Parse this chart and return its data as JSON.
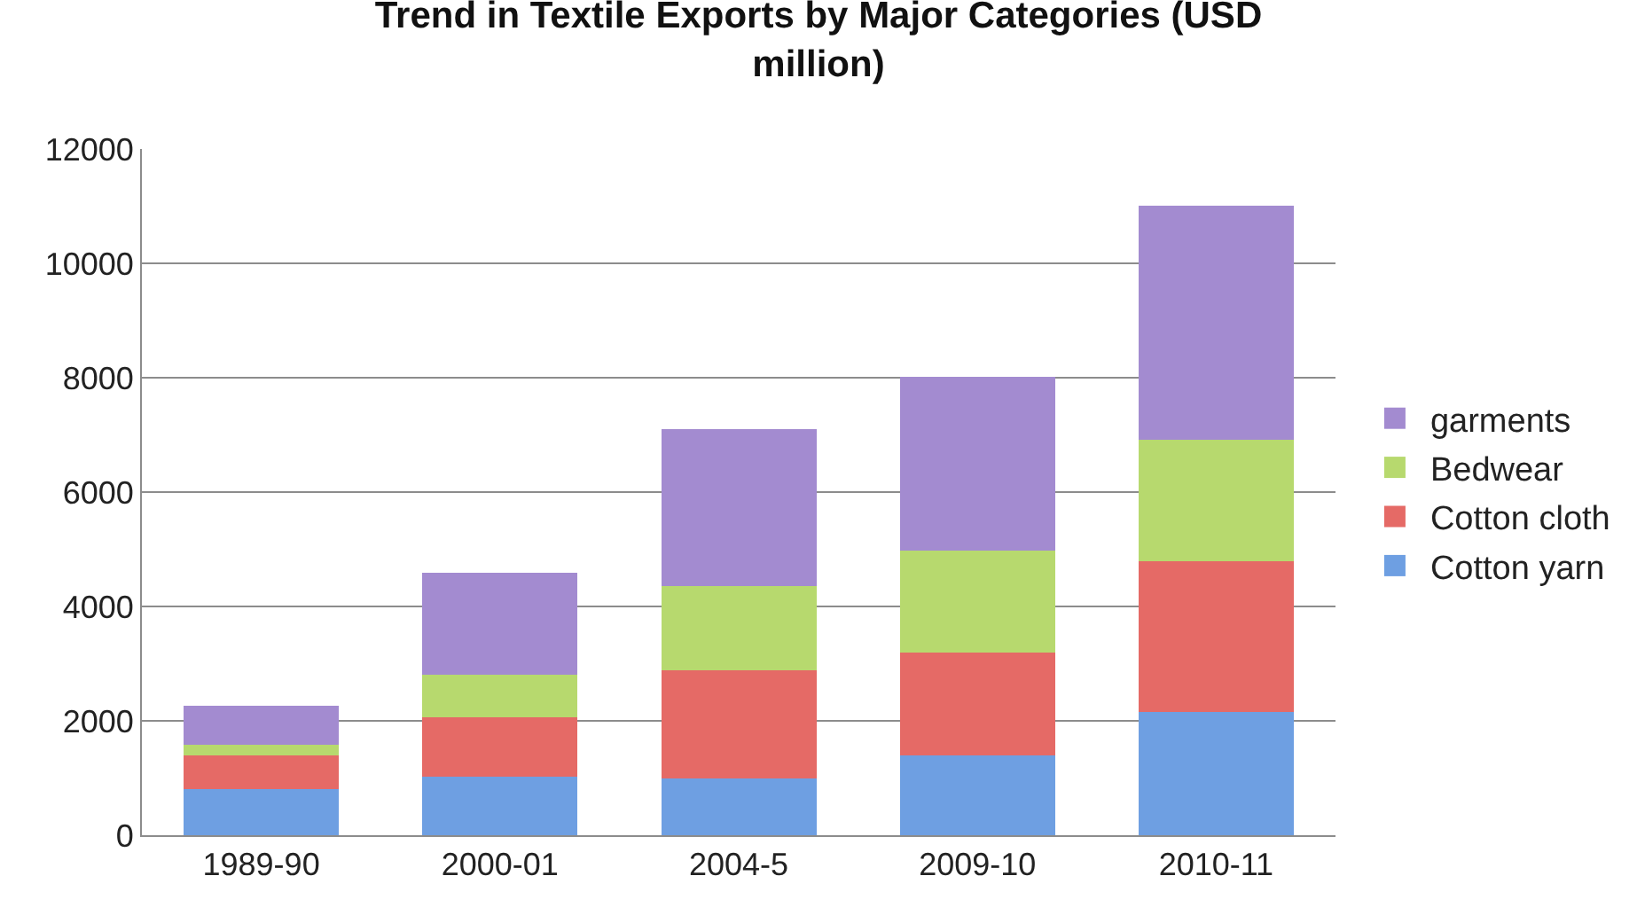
{
  "chart_data": {
    "type": "bar",
    "title": "Trend in Textile Exports by Major Categories (USD million)",
    "categories": [
      "1989-90",
      "2000-01",
      "2004-5",
      "2009-10",
      "2010-11"
    ],
    "stacked": true,
    "series": [
      {
        "name": "Cotton yarn",
        "color": "#6e9fe2",
        "values": [
          810,
          1030,
          1000,
          1390,
          2150
        ]
      },
      {
        "name": "Cotton cloth",
        "color": "#e56a66",
        "values": [
          580,
          1030,
          1890,
          1810,
          2640
        ]
      },
      {
        "name": "Bedwear",
        "color": "#b7d96e",
        "values": [
          190,
          750,
          1470,
          1770,
          2130
        ]
      },
      {
        "name": "garments",
        "color": "#a38bd0",
        "values": [
          680,
          1780,
          2740,
          3040,
          4090
        ]
      }
    ],
    "ylim": [
      0,
      12000
    ],
    "yticks": [
      0,
      2000,
      4000,
      6000,
      8000,
      10000,
      12000
    ],
    "grid": "y",
    "legend": "right"
  }
}
